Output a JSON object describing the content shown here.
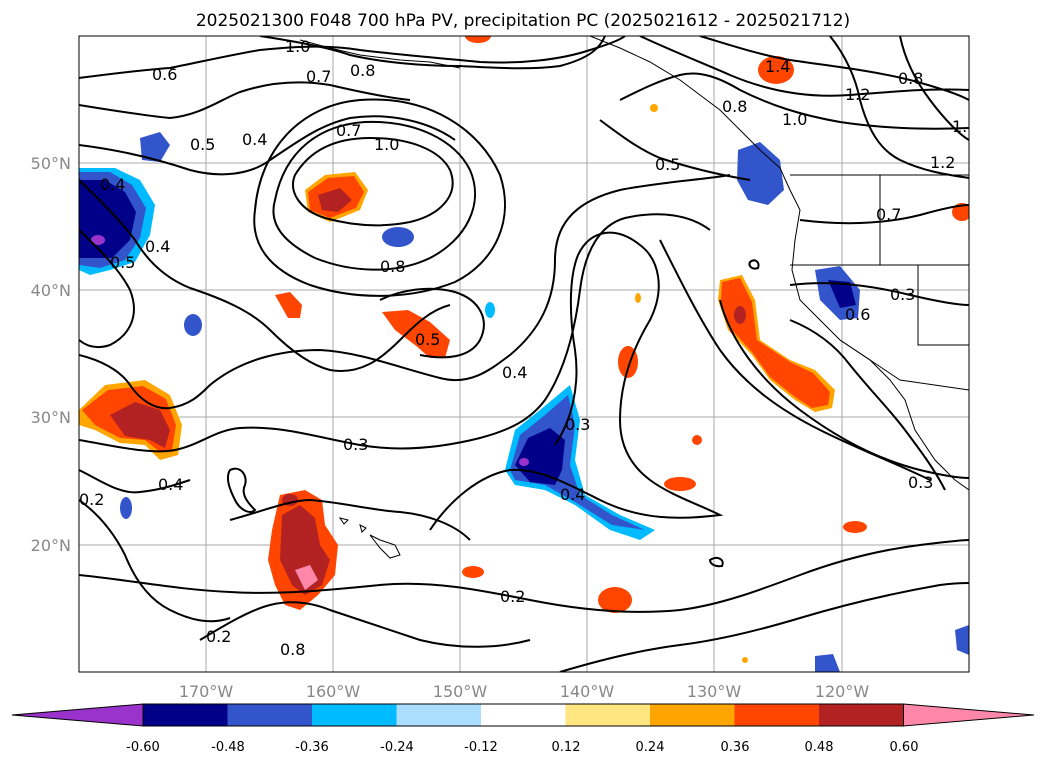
{
  "title": "2025021300 F048 700 hPa PV, precipitation PC (2025021612 - 2025021712)",
  "lat_labels": [
    "50°N",
    "40°N",
    "30°N",
    "20°N"
  ],
  "lon_labels": [
    "170°W",
    "160°W",
    "150°W",
    "140°W",
    "130°W",
    "120°W"
  ],
  "colorbar": {
    "tick_labels": [
      "-0.60",
      "-0.48",
      "-0.36",
      "-0.24",
      "-0.12",
      "0.12",
      "0.24",
      "0.36",
      "0.48",
      "0.60"
    ],
    "colors": [
      "#9933cc",
      "#000088",
      "#3355cc",
      "#00bbff",
      "#aaddff",
      "#ffffff",
      "#ffe680",
      "#ffa500",
      "#ff4500",
      "#b22222",
      "#ff88aa"
    ]
  },
  "contour_labels": [
    "1.0",
    "0.6",
    "0.7",
    "0.8",
    "0.5",
    "0.4",
    "0.7",
    "1.0",
    "0.4",
    "0.5",
    "0.4",
    "0.8",
    "0.5",
    "0.4",
    "0.3",
    "0.4",
    "0.3",
    "0.4",
    "0.2",
    "0.2",
    "0.2",
    "0.5",
    "0.8",
    "1.0",
    "1.2",
    "0.8",
    "1.",
    "1.2",
    "0.7",
    "0.3",
    "0.6",
    "0.3",
    "1.4",
    "0.8"
  ]
}
